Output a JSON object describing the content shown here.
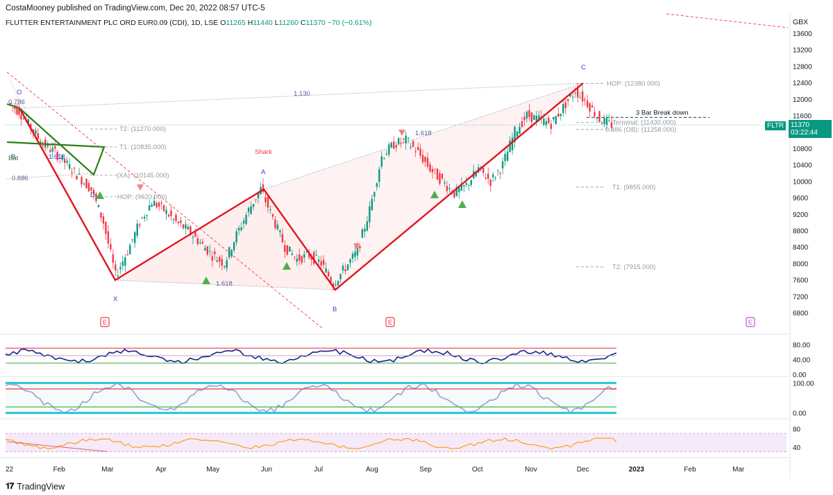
{
  "header": {
    "publisher": "CostaMooney published on TradingView.com, Dec 20, 2022 08:57 UTC-5",
    "symbol": "FLUTTER ENTERTAINMENT PLC ORD EUR0.09 (CDI), 1D, LSE",
    "o_label": "O",
    "o_value": "11265",
    "h_label": "H",
    "h_value": "11440",
    "l_label": "L",
    "l_value": "11260",
    "c_label": "C",
    "c_value": "11370",
    "change": "−70 (−0.61%)",
    "currency": "GBX"
  },
  "price_tag": {
    "ticker": "FLTR",
    "price": "11370",
    "countdown": "03:22:44"
  },
  "brand": {
    "name": "TradingView"
  },
  "colors": {
    "up": "#089981",
    "down": "#f23645",
    "pattern": "#e0141e",
    "pattern_fill": "#fde7e7",
    "abcd": "#2e7d1a",
    "rsi": "#1c1c8c",
    "rsi2": "#ff9800",
    "cyan": "#26c6da"
  },
  "chart_data": [
    {
      "type": "line",
      "subtype": "candlestick-price-with-harmonic-pattern",
      "title": "FLUTTER ENTERTAINMENT PLC ORD EUR0.09 (CDI), 1D, LSE",
      "ylabel": "GBX",
      "ylim": [
        6500,
        13800
      ],
      "y_ticks": [
        "13600",
        "13200",
        "12800",
        "12400",
        "12000",
        "11600",
        "11200",
        "10800",
        "10400",
        "10000",
        "9600",
        "9200",
        "8800",
        "8400",
        "8000",
        "7600",
        "7200",
        "6800"
      ],
      "x_ticks": [
        "22",
        "Feb",
        "Mar",
        "Apr",
        "May",
        "Jun",
        "Jul",
        "Aug",
        "Sep",
        "Oct",
        "Nov",
        "Dec",
        "2023",
        "Feb",
        "Mar"
      ],
      "harmonic_pattern": {
        "name": "Shark",
        "points": [
          {
            "label": "O",
            "date": "2022-01-10",
            "price": 11800
          },
          {
            "label": "X",
            "date": "2022-03-07",
            "price": 7600
          },
          {
            "label": "A",
            "date": "2022-05-31",
            "price": 9850
          },
          {
            "label": "B",
            "date": "2022-07-13",
            "price": 7350
          },
          {
            "label": "C",
            "date": "2022-12-01",
            "price": 12380
          }
        ],
        "ratios": [
          "1.618",
          "1.130",
          "1.618",
          "0.886",
          "0.786"
        ]
      },
      "abcd_labels": [
        "B",
        "D",
        "Bat",
        "1.618"
      ],
      "close_series": {
        "dates": [
          "2022-01-04",
          "2022-01-10",
          "2022-01-17",
          "2022-01-24",
          "2022-01-31",
          "2022-02-07",
          "2022-02-14",
          "2022-02-21",
          "2022-02-28",
          "2022-03-07",
          "2022-03-14",
          "2022-03-21",
          "2022-03-28",
          "2022-04-04",
          "2022-04-11",
          "2022-04-18",
          "2022-04-25",
          "2022-05-02",
          "2022-05-09",
          "2022-05-16",
          "2022-05-23",
          "2022-05-30",
          "2022-06-06",
          "2022-06-13",
          "2022-06-20",
          "2022-06-27",
          "2022-07-04",
          "2022-07-11",
          "2022-07-18",
          "2022-07-25",
          "2022-08-01",
          "2022-08-08",
          "2022-08-15",
          "2022-08-22",
          "2022-08-29",
          "2022-09-05",
          "2022-09-12",
          "2022-09-19",
          "2022-09-26",
          "2022-10-03",
          "2022-10-10",
          "2022-10-17",
          "2022-10-24",
          "2022-10-31",
          "2022-11-07",
          "2022-11-14",
          "2022-11-21",
          "2022-11-28",
          "2022-12-05",
          "2022-12-12",
          "2022-12-19"
        ],
        "values": [
          11900,
          11700,
          11300,
          10900,
          10700,
          10400,
          10100,
          9800,
          9000,
          7700,
          8300,
          9000,
          9500,
          9300,
          9000,
          8800,
          8500,
          8200,
          8000,
          8700,
          9300,
          9800,
          9100,
          8400,
          8100,
          8200,
          8000,
          7500,
          7900,
          8300,
          9300,
          10600,
          10900,
          11000,
          10700,
          10300,
          10000,
          9700,
          9900,
          10300,
          10000,
          10400,
          11200,
          11600,
          11500,
          11400,
          11800,
          12200,
          11900,
          11500,
          11370
        ]
      },
      "horizontal_levels": [
        {
          "label": "HOP: (12380.000)",
          "price": 12380
        },
        {
          "label": "3 Bar Break down",
          "price": 11620
        },
        {
          "label": "Terminal: (11430.000)",
          "price": 11430
        },
        {
          "label": "0.886 (OB): (11258.000)",
          "price": 11258
        },
        {
          "label": "T1: (9855.000)",
          "price": 9855
        },
        {
          "label": "T2: (7915.000)",
          "price": 7915
        },
        {
          "label": "T2: (11270.000)",
          "price": 11270
        },
        {
          "label": "T1: (10835.000)",
          "price": 10835
        },
        {
          "label": "(XA): (10145.000)",
          "price": 10145
        },
        {
          "label": "HOP: (9620.000)",
          "price": 9620
        }
      ],
      "earnings_markers": [
        "E",
        "E",
        "E"
      ]
    },
    {
      "type": "line",
      "subtype": "oscillator",
      "ylim": [
        0,
        100
      ],
      "y_ticks": [
        "80.00",
        "40.00",
        "0.00"
      ]
    },
    {
      "type": "line",
      "subtype": "oscillator",
      "ylim": [
        -10,
        110
      ],
      "y_ticks": [
        "100.00",
        "0.00"
      ]
    },
    {
      "type": "line",
      "subtype": "oscillator",
      "ylim": [
        20,
        90
      ],
      "y_ticks": [
        "80",
        "40"
      ]
    }
  ]
}
